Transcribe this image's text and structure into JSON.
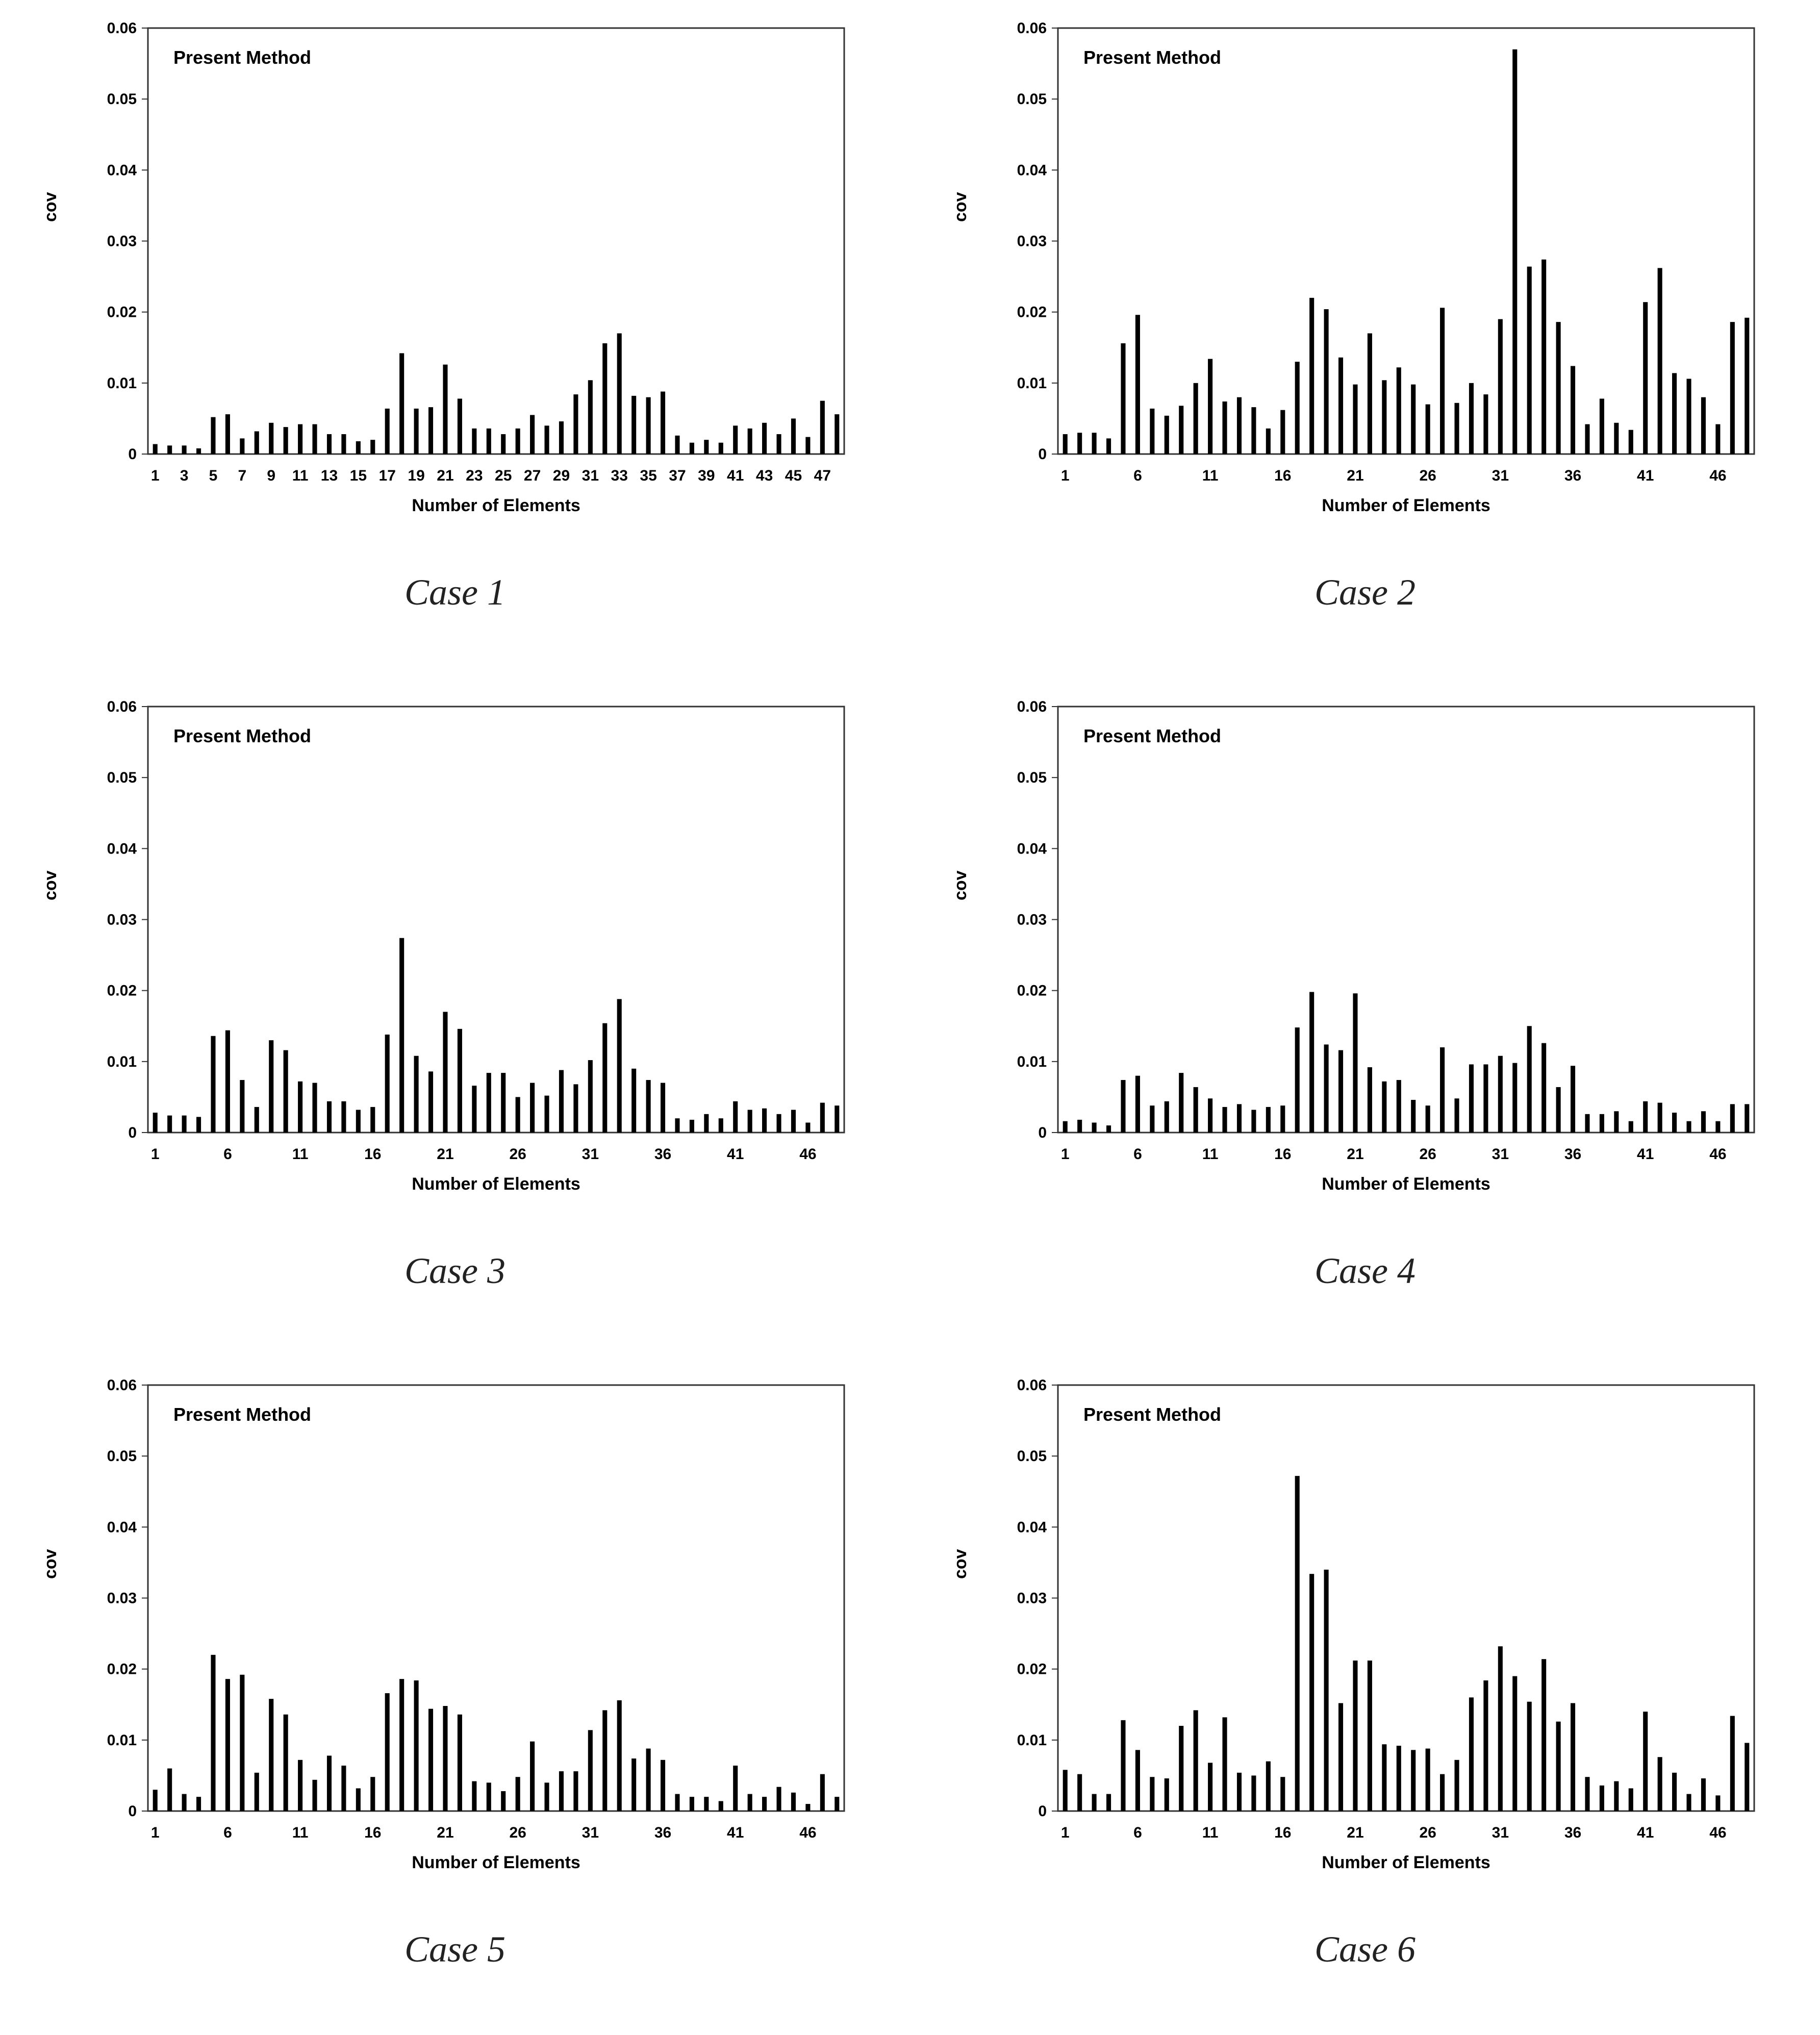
{
  "figure": {
    "captions": [
      "Case 1",
      "Case 2",
      "Case 3",
      "Case 4",
      "Case 5",
      "Case 6"
    ]
  },
  "chart_data": [
    {
      "type": "bar",
      "title": "Case 1",
      "annotation": "Present Method",
      "xlabel": "Number of Elements",
      "ylabel": "cov",
      "ylim": [
        0,
        0.06
      ],
      "yticks": [
        "0",
        "0.01",
        "0.02",
        "0.03",
        "0.04",
        "0.05",
        "0.06"
      ],
      "xticks": [
        "1",
        "3",
        "5",
        "7",
        "9",
        "11",
        "13",
        "15",
        "17",
        "19",
        "21",
        "23",
        "25",
        "27",
        "29",
        "31",
        "33",
        "35",
        "37",
        "39",
        "41",
        "43",
        "45",
        "47"
      ],
      "categories": [
        "1",
        "2",
        "3",
        "4",
        "5",
        "6",
        "7",
        "8",
        "9",
        "10",
        "11",
        "12",
        "13",
        "14",
        "15",
        "16",
        "17",
        "18",
        "19",
        "20",
        "21",
        "22",
        "23",
        "24",
        "25",
        "26",
        "27",
        "28",
        "29",
        "30",
        "31",
        "32",
        "33",
        "34",
        "35",
        "36",
        "37",
        "38",
        "39",
        "40",
        "41",
        "42",
        "43",
        "44",
        "45",
        "46",
        "47",
        "48"
      ],
      "values": [
        0.0014,
        0.0012,
        0.0012,
        0.0008,
        0.0052,
        0.0056,
        0.0022,
        0.0032,
        0.0044,
        0.0038,
        0.0042,
        0.0042,
        0.0028,
        0.0028,
        0.0018,
        0.002,
        0.0064,
        0.0142,
        0.0064,
        0.0066,
        0.0126,
        0.0078,
        0.0036,
        0.0036,
        0.0028,
        0.0036,
        0.0055,
        0.004,
        0.0046,
        0.0084,
        0.0104,
        0.0156,
        0.017,
        0.0082,
        0.008,
        0.0088,
        0.0026,
        0.0016,
        0.002,
        0.0016,
        0.004,
        0.0036,
        0.0044,
        0.0028,
        0.005,
        0.0024,
        0.0075,
        0.0056
      ]
    },
    {
      "type": "bar",
      "title": "Case 2",
      "annotation": "Present Method",
      "xlabel": "Number of Elements",
      "ylabel": "cov",
      "ylim": [
        0,
        0.06
      ],
      "yticks": [
        "0",
        "0.01",
        "0.02",
        "0.03",
        "0.04",
        "0.05",
        "0.06"
      ],
      "xticks": [
        "1",
        "6",
        "11",
        "16",
        "21",
        "26",
        "31",
        "36",
        "41",
        "46"
      ],
      "categories": [
        "1",
        "2",
        "3",
        "4",
        "5",
        "6",
        "7",
        "8",
        "9",
        "10",
        "11",
        "12",
        "13",
        "14",
        "15",
        "16",
        "17",
        "18",
        "19",
        "20",
        "21",
        "22",
        "23",
        "24",
        "25",
        "26",
        "27",
        "28",
        "29",
        "30",
        "31",
        "32",
        "33",
        "34",
        "35",
        "36",
        "37",
        "38",
        "39",
        "40",
        "41",
        "42",
        "43",
        "44",
        "45",
        "46",
        "47",
        "48"
      ],
      "values": [
        0.0028,
        0.003,
        0.003,
        0.0022,
        0.0156,
        0.0196,
        0.0064,
        0.0054,
        0.0068,
        0.01,
        0.0134,
        0.0074,
        0.008,
        0.0066,
        0.0036,
        0.0062,
        0.013,
        0.022,
        0.0204,
        0.0136,
        0.0098,
        0.017,
        0.0104,
        0.0122,
        0.0098,
        0.007,
        0.0206,
        0.0072,
        0.01,
        0.0084,
        0.019,
        0.057,
        0.0264,
        0.0274,
        0.0186,
        0.0124,
        0.0042,
        0.0078,
        0.0044,
        0.0034,
        0.0214,
        0.0262,
        0.0114,
        0.0106,
        0.008,
        0.0042,
        0.0186,
        0.0192
      ]
    },
    {
      "type": "bar",
      "title": "Case 3",
      "annotation": "Present Method",
      "xlabel": "Number of Elements",
      "ylabel": "cov",
      "ylim": [
        0,
        0.06
      ],
      "yticks": [
        "0",
        "0.01",
        "0.02",
        "0.03",
        "0.04",
        "0.05",
        "0.06"
      ],
      "xticks": [
        "1",
        "6",
        "11",
        "16",
        "21",
        "26",
        "31",
        "36",
        "41",
        "46"
      ],
      "categories": [
        "1",
        "2",
        "3",
        "4",
        "5",
        "6",
        "7",
        "8",
        "9",
        "10",
        "11",
        "12",
        "13",
        "14",
        "15",
        "16",
        "17",
        "18",
        "19",
        "20",
        "21",
        "22",
        "23",
        "24",
        "25",
        "26",
        "27",
        "28",
        "29",
        "30",
        "31",
        "32",
        "33",
        "34",
        "35",
        "36",
        "37",
        "38",
        "39",
        "40",
        "41",
        "42",
        "43",
        "44",
        "45",
        "46",
        "47",
        "48"
      ],
      "values": [
        0.0028,
        0.0024,
        0.0024,
        0.0022,
        0.0136,
        0.0144,
        0.0074,
        0.0036,
        0.013,
        0.0116,
        0.0072,
        0.007,
        0.0044,
        0.0044,
        0.0032,
        0.0036,
        0.0138,
        0.0274,
        0.0108,
        0.0086,
        0.017,
        0.0146,
        0.0066,
        0.0084,
        0.0084,
        0.005,
        0.007,
        0.0052,
        0.0088,
        0.0068,
        0.0102,
        0.0154,
        0.0188,
        0.009,
        0.0074,
        0.007,
        0.002,
        0.0018,
        0.0026,
        0.002,
        0.0044,
        0.0032,
        0.0034,
        0.0026,
        0.0032,
        0.0014,
        0.0042,
        0.0038
      ]
    },
    {
      "type": "bar",
      "title": "Case 4",
      "annotation": "Present Method",
      "xlabel": "Number of Elements",
      "ylabel": "cov",
      "ylim": [
        0,
        0.06
      ],
      "yticks": [
        "0",
        "0.01",
        "0.02",
        "0.03",
        "0.04",
        "0.05",
        "0.06"
      ],
      "xticks": [
        "1",
        "6",
        "11",
        "16",
        "21",
        "26",
        "31",
        "36",
        "41",
        "46"
      ],
      "categories": [
        "1",
        "2",
        "3",
        "4",
        "5",
        "6",
        "7",
        "8",
        "9",
        "10",
        "11",
        "12",
        "13",
        "14",
        "15",
        "16",
        "17",
        "18",
        "19",
        "20",
        "21",
        "22",
        "23",
        "24",
        "25",
        "26",
        "27",
        "28",
        "29",
        "30",
        "31",
        "32",
        "33",
        "34",
        "35",
        "36",
        "37",
        "38",
        "39",
        "40",
        "41",
        "42",
        "43",
        "44",
        "45",
        "46",
        "47",
        "48"
      ],
      "values": [
        0.0016,
        0.0018,
        0.0014,
        0.001,
        0.0074,
        0.008,
        0.0038,
        0.0044,
        0.0084,
        0.0064,
        0.0048,
        0.0036,
        0.004,
        0.0032,
        0.0036,
        0.0038,
        0.0148,
        0.0198,
        0.0124,
        0.0116,
        0.0196,
        0.0092,
        0.0072,
        0.0074,
        0.0046,
        0.0038,
        0.012,
        0.0048,
        0.0096,
        0.0096,
        0.0108,
        0.0098,
        0.015,
        0.0126,
        0.0064,
        0.0094,
        0.0026,
        0.0026,
        0.003,
        0.0016,
        0.0044,
        0.0042,
        0.0028,
        0.0016,
        0.003,
        0.0016,
        0.004,
        0.004
      ]
    },
    {
      "type": "bar",
      "title": "Case 5",
      "annotation": "Present Method",
      "xlabel": "Number of Elements",
      "ylabel": "cov",
      "ylim": [
        0,
        0.06
      ],
      "yticks": [
        "0",
        "0.01",
        "0.02",
        "0.03",
        "0.04",
        "0.05",
        "0.06"
      ],
      "xticks": [
        "1",
        "6",
        "11",
        "16",
        "21",
        "26",
        "31",
        "36",
        "41",
        "46"
      ],
      "categories": [
        "1",
        "2",
        "3",
        "4",
        "5",
        "6",
        "7",
        "8",
        "9",
        "10",
        "11",
        "12",
        "13",
        "14",
        "15",
        "16",
        "17",
        "18",
        "19",
        "20",
        "21",
        "22",
        "23",
        "24",
        "25",
        "26",
        "27",
        "28",
        "29",
        "30",
        "31",
        "32",
        "33",
        "34",
        "35",
        "36",
        "37",
        "38",
        "39",
        "40",
        "41",
        "42",
        "43",
        "44",
        "45",
        "46",
        "47",
        "48"
      ],
      "values": [
        0.003,
        0.006,
        0.0024,
        0.002,
        0.022,
        0.0186,
        0.0192,
        0.0054,
        0.0158,
        0.0136,
        0.0072,
        0.0044,
        0.0078,
        0.0064,
        0.0032,
        0.0048,
        0.0166,
        0.0186,
        0.0184,
        0.0144,
        0.0148,
        0.0136,
        0.0042,
        0.004,
        0.0028,
        0.0048,
        0.0098,
        0.004,
        0.0056,
        0.0056,
        0.0114,
        0.0142,
        0.0156,
        0.0074,
        0.0088,
        0.0072,
        0.0024,
        0.002,
        0.002,
        0.0014,
        0.0064,
        0.0024,
        0.002,
        0.0034,
        0.0026,
        0.001,
        0.0052,
        0.002
      ]
    },
    {
      "type": "bar",
      "title": "Case 6",
      "annotation": "Present Method",
      "xlabel": "Number of Elements",
      "ylabel": "cov",
      "ylim": [
        0,
        0.06
      ],
      "yticks": [
        "0",
        "0.01",
        "0.02",
        "0.03",
        "0.04",
        "0.05",
        "0.06"
      ],
      "xticks": [
        "1",
        "6",
        "11",
        "16",
        "21",
        "26",
        "31",
        "36",
        "41",
        "46"
      ],
      "categories": [
        "1",
        "2",
        "3",
        "4",
        "5",
        "6",
        "7",
        "8",
        "9",
        "10",
        "11",
        "12",
        "13",
        "14",
        "15",
        "16",
        "17",
        "18",
        "19",
        "20",
        "21",
        "22",
        "23",
        "24",
        "25",
        "26",
        "27",
        "28",
        "29",
        "30",
        "31",
        "32",
        "33",
        "34",
        "35",
        "36",
        "37",
        "38",
        "39",
        "40",
        "41",
        "42",
        "43",
        "44",
        "45",
        "46",
        "47",
        "48"
      ],
      "values": [
        0.0058,
        0.0052,
        0.0024,
        0.0024,
        0.0128,
        0.0086,
        0.0048,
        0.0046,
        0.012,
        0.0142,
        0.0068,
        0.0132,
        0.0054,
        0.005,
        0.007,
        0.0048,
        0.0472,
        0.0334,
        0.034,
        0.0152,
        0.0212,
        0.0212,
        0.0094,
        0.0092,
        0.0086,
        0.0088,
        0.0052,
        0.0072,
        0.016,
        0.0184,
        0.0232,
        0.019,
        0.0154,
        0.0214,
        0.0126,
        0.0152,
        0.0048,
        0.0036,
        0.0042,
        0.0032,
        0.014,
        0.0076,
        0.0054,
        0.0024,
        0.0046,
        0.0022,
        0.0134,
        0.0096
      ]
    }
  ]
}
